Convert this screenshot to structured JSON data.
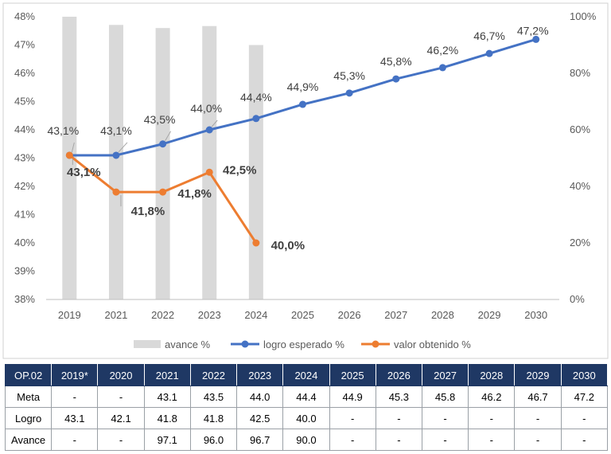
{
  "chart_data": {
    "type": "bar+line",
    "categories": [
      "2019",
      "2021",
      "2022",
      "2023",
      "2024",
      "2025",
      "2026",
      "2027",
      "2028",
      "2029",
      "2030"
    ],
    "y_left": {
      "min": 38,
      "max": 48,
      "step": 1,
      "ticks": [
        "38%",
        "39%",
        "40%",
        "41%",
        "42%",
        "43%",
        "44%",
        "45%",
        "46%",
        "47%",
        "48%"
      ]
    },
    "y_right": {
      "min": 0,
      "max": 100,
      "ticks": [
        "0%",
        "20%",
        "40%",
        "60%",
        "80%",
        "100%"
      ]
    },
    "series": [
      {
        "name": "avance %",
        "type": "bar",
        "axis": "right",
        "color": "#d9d9d9",
        "values": [
          100,
          97.1,
          96.0,
          96.7,
          90.0,
          null,
          null,
          null,
          null,
          null,
          null
        ]
      },
      {
        "name": "logro esperado %",
        "type": "line",
        "axis": "left",
        "color": "#4472c4",
        "values": [
          43.1,
          43.1,
          43.5,
          44.0,
          44.4,
          44.9,
          45.3,
          45.8,
          46.2,
          46.7,
          47.2
        ],
        "labels": [
          "43,1%",
          "43,1%",
          "43,5%",
          "44,0%",
          "44,4%",
          "44,9%",
          "45,3%",
          "45,8%",
          "46,2%",
          "46,7%",
          "47,2%"
        ]
      },
      {
        "name": "valor obtenido %",
        "type": "line",
        "axis": "left",
        "color": "#ed7d31",
        "values": [
          43.1,
          41.8,
          41.8,
          42.5,
          40.0,
          null,
          null,
          null,
          null,
          null,
          null
        ],
        "labels": [
          "43,1%",
          "41,8%",
          "41,8%",
          "42,5%",
          "40,0%",
          null,
          null,
          null,
          null,
          null,
          null
        ]
      }
    ],
    "legend_position": "bottom"
  },
  "table": {
    "headers": [
      "OP.02",
      "2019*",
      "2020",
      "2021",
      "2022",
      "2023",
      "2024",
      "2025",
      "2026",
      "2027",
      "2028",
      "2029",
      "2030"
    ],
    "rows": [
      [
        "Meta",
        "-",
        "-",
        "43.1",
        "43.5",
        "44.0",
        "44.4",
        "44.9",
        "45.3",
        "45.8",
        "46.2",
        "46.7",
        "47.2"
      ],
      [
        "Logro",
        "43.1",
        "42.1",
        "41.8",
        "41.8",
        "42.5",
        "40.0",
        "-",
        "-",
        "-",
        "-",
        "-",
        "-"
      ],
      [
        "Avance",
        "-",
        "-",
        "97.1",
        "96.0",
        "96.7",
        "90.0",
        "-",
        "-",
        "-",
        "-",
        "-",
        "-"
      ]
    ]
  }
}
